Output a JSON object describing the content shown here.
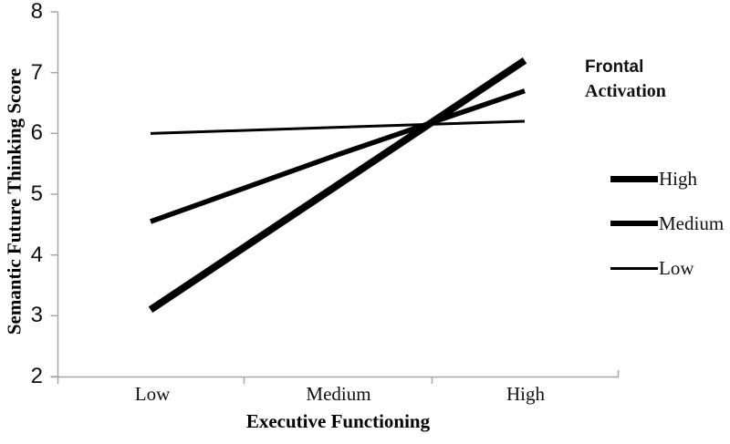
{
  "chart_data": {
    "type": "line",
    "title": "",
    "xlabel": "Executive Functioning",
    "ylabel": "Semantic Future Thinking Score",
    "categories": [
      "Low",
      "Medium",
      "High"
    ],
    "y_ticks": [
      "2",
      "3",
      "4",
      "5",
      "6",
      "7",
      "8"
    ],
    "ylim": [
      2,
      8
    ],
    "grid": false,
    "legend": {
      "position": "right",
      "title_line1": "Frontal",
      "title_line2": "Activation",
      "entries": [
        "High",
        "Medium",
        "Low"
      ]
    },
    "series": [
      {
        "name": "High",
        "values": [
          3.1,
          5.15,
          7.2
        ],
        "stroke_width": 8
      },
      {
        "name": "Medium",
        "values": [
          4.55,
          5.65,
          6.7
        ],
        "stroke_width": 5.5
      },
      {
        "name": "Low",
        "values": [
          6.0,
          6.1,
          6.2
        ],
        "stroke_width": 3
      }
    ],
    "colors": {
      "line": "#000000",
      "axis": "#a6a6a6",
      "text": "#111111"
    }
  }
}
